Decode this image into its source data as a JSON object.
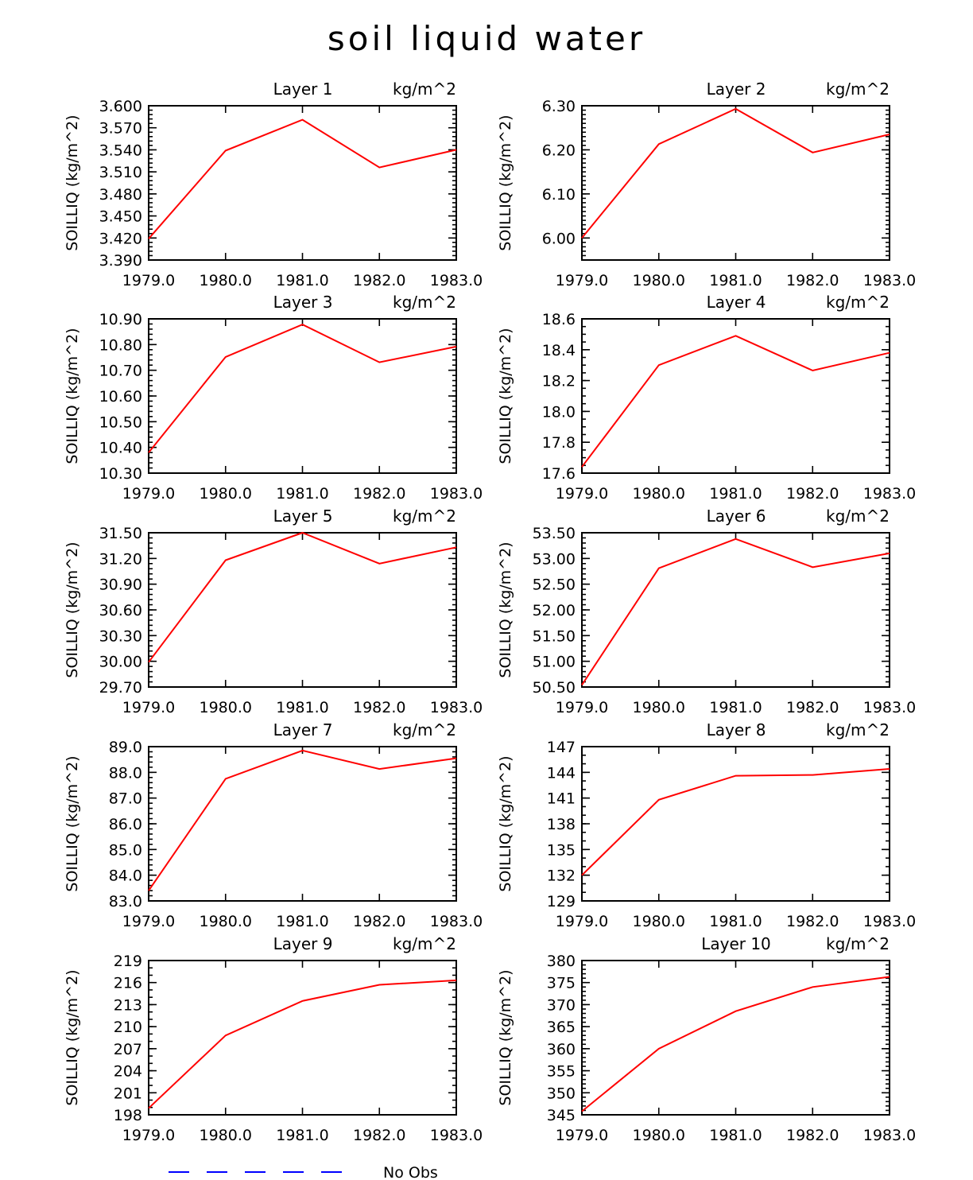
{
  "title": "soil liquid water",
  "legend": {
    "label": "No Obs",
    "color": "#0000ff"
  },
  "series_color": "#ff0000",
  "chart_data": [
    {
      "type": "line",
      "title": "Layer 1",
      "units": "kg/m^2",
      "ylabel": "SOILLIQ   (kg/m^2)",
      "x": [
        1979,
        1980,
        1981,
        1982,
        1983
      ],
      "xticks": [
        "1979.0",
        "1980.0",
        "1981.0",
        "1982.0",
        "1983.0"
      ],
      "ylim": [
        3.39,
        3.6
      ],
      "ytick_values": [
        3.39,
        3.42,
        3.45,
        3.48,
        3.51,
        3.54,
        3.57,
        3.6
      ],
      "yticks": [
        "3.390",
        "3.420",
        "3.450",
        "3.480",
        "3.510",
        "3.540",
        "3.570",
        "3.600"
      ],
      "minor": 5,
      "values": [
        3.419,
        3.539,
        3.581,
        3.516,
        3.54
      ]
    },
    {
      "type": "line",
      "title": "Layer 2",
      "units": "kg/m^2",
      "ylabel": "SOILLIQ   (kg/m^2)",
      "x": [
        1979,
        1980,
        1981,
        1982,
        1983
      ],
      "xticks": [
        "1979.0",
        "1980.0",
        "1981.0",
        "1982.0",
        "1983.0"
      ],
      "ylim": [
        5.95,
        6.3
      ],
      "ytick_values": [
        6.0,
        6.1,
        6.2,
        6.3
      ],
      "yticks": [
        "6.00",
        "6.10",
        "6.20",
        "6.30"
      ],
      "minor": 10,
      "values": [
        6.0,
        6.213,
        6.293,
        6.194,
        6.235
      ]
    },
    {
      "type": "line",
      "title": "Layer 3",
      "units": "kg/m^2",
      "ylabel": "SOILLIQ   (kg/m^2)",
      "x": [
        1979,
        1980,
        1981,
        1982,
        1983
      ],
      "xticks": [
        "1979.0",
        "1980.0",
        "1981.0",
        "1982.0",
        "1983.0"
      ],
      "ylim": [
        10.3,
        10.9
      ],
      "ytick_values": [
        10.3,
        10.4,
        10.5,
        10.6,
        10.7,
        10.8,
        10.9
      ],
      "yticks": [
        "10.30",
        "10.40",
        "10.50",
        "10.60",
        "10.70",
        "10.80",
        "10.90"
      ],
      "minor": 5,
      "values": [
        10.38,
        10.752,
        10.878,
        10.731,
        10.792
      ]
    },
    {
      "type": "line",
      "title": "Layer 4",
      "units": "kg/m^2",
      "ylabel": "SOILLIQ   (kg/m^2)",
      "x": [
        1979,
        1980,
        1981,
        1982,
        1983
      ],
      "xticks": [
        "1979.0",
        "1980.0",
        "1981.0",
        "1982.0",
        "1983.0"
      ],
      "ylim": [
        17.6,
        18.6
      ],
      "ytick_values": [
        17.6,
        17.8,
        18.0,
        18.2,
        18.4,
        18.6
      ],
      "yticks": [
        "17.6",
        "17.8",
        "18.0",
        "18.2",
        "18.4",
        "18.6"
      ],
      "minor": 4,
      "values": [
        17.64,
        18.3,
        18.49,
        18.265,
        18.38
      ]
    },
    {
      "type": "line",
      "title": "Layer 5",
      "units": "kg/m^2",
      "ylabel": "SOILLIQ   (kg/m^2)",
      "x": [
        1979,
        1980,
        1981,
        1982,
        1983
      ],
      "xticks": [
        "1979.0",
        "1980.0",
        "1981.0",
        "1982.0",
        "1983.0"
      ],
      "ylim": [
        29.7,
        31.5
      ],
      "ytick_values": [
        29.7,
        30.0,
        30.3,
        30.6,
        30.9,
        31.2,
        31.5
      ],
      "yticks": [
        "29.70",
        "30.00",
        "30.30",
        "30.60",
        "30.90",
        "31.20",
        "31.50"
      ],
      "minor": 5,
      "values": [
        29.99,
        31.18,
        31.5,
        31.14,
        31.33
      ]
    },
    {
      "type": "line",
      "title": "Layer 6",
      "units": "kg/m^2",
      "ylabel": "SOILLIQ   (kg/m^2)",
      "x": [
        1979,
        1980,
        1981,
        1982,
        1983
      ],
      "xticks": [
        "1979.0",
        "1980.0",
        "1981.0",
        "1982.0",
        "1983.0"
      ],
      "ylim": [
        50.5,
        53.5
      ],
      "ytick_values": [
        50.5,
        51.0,
        51.5,
        52.0,
        52.5,
        53.0,
        53.5
      ],
      "yticks": [
        "50.50",
        "51.00",
        "51.50",
        "52.00",
        "52.50",
        "53.00",
        "53.50"
      ],
      "minor": 5,
      "values": [
        50.54,
        52.81,
        53.38,
        52.83,
        53.1
      ]
    },
    {
      "type": "line",
      "title": "Layer 7",
      "units": "kg/m^2",
      "ylabel": "SOILLIQ   (kg/m^2)",
      "x": [
        1979,
        1980,
        1981,
        1982,
        1983
      ],
      "xticks": [
        "1979.0",
        "1980.0",
        "1981.0",
        "1982.0",
        "1983.0"
      ],
      "ylim": [
        83.0,
        89.0
      ],
      "ytick_values": [
        83,
        84,
        85,
        86,
        87,
        88,
        89
      ],
      "yticks": [
        "83.0",
        "84.0",
        "85.0",
        "86.0",
        "87.0",
        "88.0",
        "89.0"
      ],
      "minor": 5,
      "values": [
        83.4,
        87.75,
        88.85,
        88.13,
        88.55
      ]
    },
    {
      "type": "line",
      "title": "Layer 8",
      "units": "kg/m^2",
      "ylabel": "SOILLIQ   (kg/m^2)",
      "x": [
        1979,
        1980,
        1981,
        1982,
        1983
      ],
      "xticks": [
        "1979.0",
        "1980.0",
        "1981.0",
        "1982.0",
        "1983.0"
      ],
      "ylim": [
        129,
        147
      ],
      "ytick_values": [
        129,
        132,
        135,
        138,
        141,
        144,
        147
      ],
      "yticks": [
        "129",
        "132",
        "135",
        "138",
        "141",
        "144",
        "147"
      ],
      "minor": 3,
      "values": [
        132.0,
        140.8,
        143.6,
        143.7,
        144.4
      ]
    },
    {
      "type": "line",
      "title": "Layer 9",
      "units": "kg/m^2",
      "ylabel": "SOILLIQ   (kg/m^2)",
      "x": [
        1979,
        1980,
        1981,
        1982,
        1983
      ],
      "xticks": [
        "1979.0",
        "1980.0",
        "1981.0",
        "1982.0",
        "1983.0"
      ],
      "ylim": [
        198,
        219
      ],
      "ytick_values": [
        198,
        201,
        204,
        207,
        210,
        213,
        216,
        219
      ],
      "yticks": [
        "198",
        "201",
        "204",
        "207",
        "210",
        "213",
        "216",
        "219"
      ],
      "minor": 3,
      "values": [
        198.9,
        208.8,
        213.5,
        215.7,
        216.3
      ]
    },
    {
      "type": "line",
      "title": "Layer 10",
      "units": "kg/m^2",
      "ylabel": "SOILLIQ   (kg/m^2)",
      "x": [
        1979,
        1980,
        1981,
        1982,
        1983
      ],
      "xticks": [
        "1979.0",
        "1980.0",
        "1981.0",
        "1982.0",
        "1983.0"
      ],
      "ylim": [
        345,
        380
      ],
      "ytick_values": [
        345,
        350,
        355,
        360,
        365,
        370,
        375,
        380
      ],
      "yticks": [
        "345",
        "350",
        "355",
        "360",
        "365",
        "370",
        "375",
        "380"
      ],
      "minor": 5,
      "values": [
        345.8,
        360.0,
        368.5,
        374.0,
        376.3
      ]
    }
  ]
}
